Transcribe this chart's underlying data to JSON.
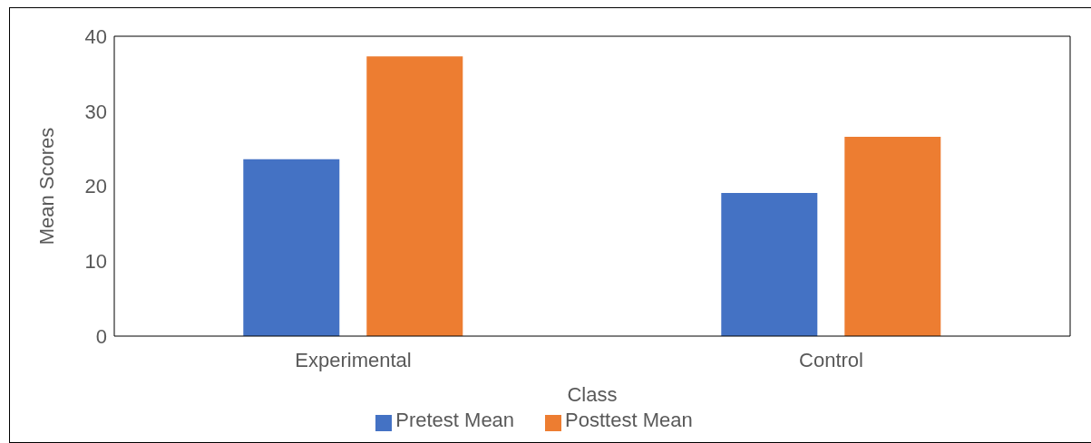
{
  "chart_data": {
    "type": "bar",
    "xlabel": "Class",
    "ylabel": "Mean Scores",
    "categories": [
      "Experimental",
      "Control"
    ],
    "series": [
      {
        "name": "Pretest Mean",
        "color": "#4472c4",
        "values": [
          23.6,
          19.1
        ]
      },
      {
        "name": "Posttest Mean",
        "color": "#ed7d31",
        "values": [
          37.3,
          26.6
        ]
      }
    ],
    "ylim": [
      0,
      40
    ],
    "yticks": [
      0,
      10,
      20,
      30,
      40
    ],
    "grid": false,
    "legend": "bottom"
  }
}
